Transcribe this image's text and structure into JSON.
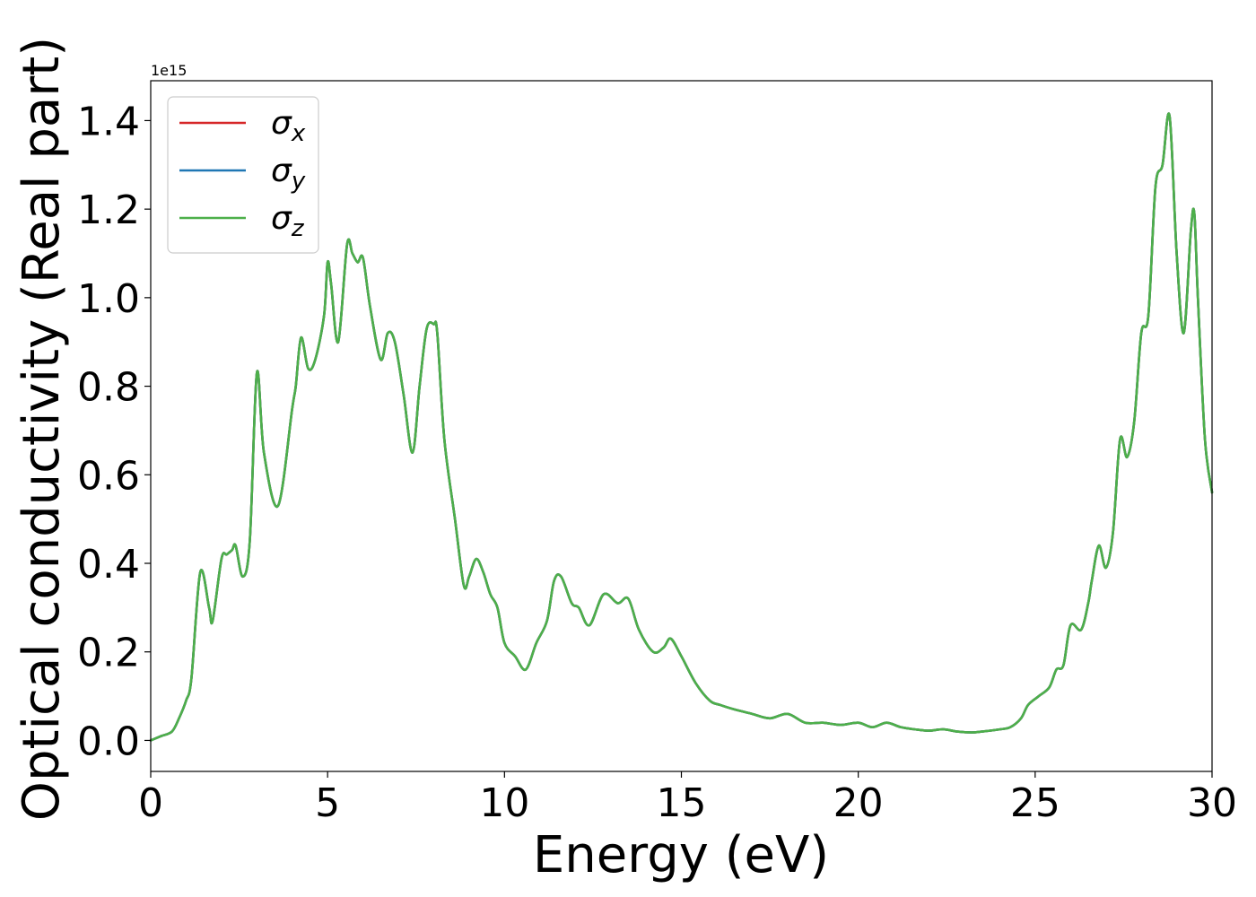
{
  "chart_data": {
    "type": "line",
    "xlabel": "Energy (eV)",
    "ylabel": "Optical conductivity (Real part)",
    "y_offset_label": "1e15",
    "xlim": [
      0,
      30
    ],
    "ylim": [
      -0.07,
      1.49
    ],
    "x_ticks": [
      0,
      5,
      10,
      15,
      20,
      25,
      30
    ],
    "x_tick_labels": [
      "0",
      "5",
      "10",
      "15",
      "20",
      "25",
      "30"
    ],
    "y_ticks": [
      0.0,
      0.2,
      0.4,
      0.6,
      0.8,
      1.0,
      1.2,
      1.4
    ],
    "y_tick_labels": [
      "0.0",
      "0.2",
      "0.4",
      "0.6",
      "0.8",
      "1.0",
      "1.2",
      "1.4"
    ],
    "grid": false,
    "legend_position": "top-left",
    "legend": [
      {
        "symbol": "σ",
        "subscript": "x",
        "color": "#d62728"
      },
      {
        "symbol": "σ",
        "subscript": "y",
        "color": "#1f77b4"
      },
      {
        "symbol": "σ",
        "subscript": "z",
        "color": "#4daf4a"
      }
    ],
    "x": [
      0,
      0.3,
      0.6,
      0.8,
      1.0,
      1.15,
      1.4,
      1.65,
      1.75,
      2.0,
      2.15,
      2.3,
      2.4,
      2.6,
      2.8,
      3.0,
      3.2,
      3.6,
      4.0,
      4.1,
      4.25,
      4.45,
      4.65,
      4.9,
      5.0,
      5.1,
      5.3,
      5.55,
      5.7,
      5.85,
      6.0,
      6.2,
      6.5,
      6.7,
      6.9,
      7.15,
      7.4,
      7.6,
      7.8,
      8.0,
      8.1,
      8.3,
      8.6,
      8.85,
      9.0,
      9.2,
      9.4,
      9.6,
      9.8,
      10.0,
      10.3,
      10.6,
      10.9,
      11.2,
      11.4,
      11.6,
      11.9,
      12.1,
      12.4,
      12.8,
      13.2,
      13.5,
      13.8,
      14.2,
      14.5,
      14.7,
      15.0,
      15.4,
      15.8,
      16.1,
      16.5,
      17.0,
      17.5,
      18.0,
      18.5,
      19.0,
      19.5,
      20.0,
      20.4,
      20.8,
      21.2,
      21.6,
      22.0,
      22.4,
      22.8,
      23.2,
      23.5,
      24.0,
      24.3,
      24.6,
      24.8,
      25.1,
      25.4,
      25.6,
      25.8,
      26.0,
      26.3,
      26.5,
      26.6,
      26.8,
      27.0,
      27.2,
      27.4,
      27.6,
      27.8,
      28.0,
      28.2,
      28.4,
      28.6,
      28.8,
      29.0,
      29.2,
      29.4,
      29.5,
      29.6,
      29.8,
      30.0
    ],
    "series": [
      {
        "name": "σx",
        "color": "#d62728",
        "values": [
          0.0,
          0.01,
          0.02,
          0.05,
          0.09,
          0.14,
          0.38,
          0.3,
          0.27,
          0.41,
          0.42,
          0.43,
          0.44,
          0.37,
          0.45,
          0.83,
          0.65,
          0.53,
          0.75,
          0.8,
          0.91,
          0.84,
          0.86,
          0.96,
          1.08,
          1.03,
          0.9,
          1.12,
          1.1,
          1.08,
          1.09,
          0.98,
          0.86,
          0.92,
          0.9,
          0.78,
          0.65,
          0.8,
          0.93,
          0.94,
          0.92,
          0.68,
          0.5,
          0.35,
          0.37,
          0.41,
          0.38,
          0.33,
          0.3,
          0.22,
          0.19,
          0.16,
          0.22,
          0.27,
          0.36,
          0.37,
          0.31,
          0.3,
          0.26,
          0.33,
          0.31,
          0.32,
          0.25,
          0.2,
          0.21,
          0.23,
          0.19,
          0.13,
          0.09,
          0.08,
          0.07,
          0.06,
          0.05,
          0.06,
          0.04,
          0.04,
          0.035,
          0.04,
          0.03,
          0.04,
          0.03,
          0.025,
          0.022,
          0.025,
          0.02,
          0.018,
          0.02,
          0.025,
          0.03,
          0.05,
          0.08,
          0.1,
          0.12,
          0.16,
          0.17,
          0.26,
          0.25,
          0.31,
          0.36,
          0.44,
          0.39,
          0.47,
          0.68,
          0.64,
          0.72,
          0.92,
          0.96,
          1.25,
          1.3,
          1.41,
          1.1,
          0.92,
          1.15,
          1.19,
          1.0,
          0.68,
          0.56
        ]
      },
      {
        "name": "σy",
        "color": "#1f77b4",
        "values": [
          0.0,
          0.01,
          0.02,
          0.05,
          0.09,
          0.14,
          0.38,
          0.3,
          0.27,
          0.41,
          0.42,
          0.43,
          0.44,
          0.37,
          0.45,
          0.83,
          0.65,
          0.53,
          0.75,
          0.8,
          0.91,
          0.84,
          0.86,
          0.96,
          1.08,
          1.03,
          0.9,
          1.12,
          1.1,
          1.08,
          1.09,
          0.98,
          0.86,
          0.92,
          0.9,
          0.78,
          0.65,
          0.8,
          0.93,
          0.94,
          0.92,
          0.68,
          0.5,
          0.35,
          0.37,
          0.41,
          0.38,
          0.33,
          0.3,
          0.22,
          0.19,
          0.16,
          0.22,
          0.27,
          0.36,
          0.37,
          0.31,
          0.3,
          0.26,
          0.33,
          0.31,
          0.32,
          0.25,
          0.2,
          0.21,
          0.23,
          0.19,
          0.13,
          0.09,
          0.08,
          0.07,
          0.06,
          0.05,
          0.06,
          0.04,
          0.04,
          0.035,
          0.04,
          0.03,
          0.04,
          0.03,
          0.025,
          0.022,
          0.025,
          0.02,
          0.018,
          0.02,
          0.025,
          0.03,
          0.05,
          0.08,
          0.1,
          0.12,
          0.16,
          0.17,
          0.26,
          0.25,
          0.31,
          0.36,
          0.44,
          0.39,
          0.47,
          0.68,
          0.64,
          0.72,
          0.92,
          0.96,
          1.25,
          1.3,
          1.41,
          1.1,
          0.92,
          1.15,
          1.19,
          1.0,
          0.68,
          0.56
        ]
      },
      {
        "name": "σz",
        "color": "#4daf4a",
        "values": [
          0.0,
          0.01,
          0.02,
          0.05,
          0.09,
          0.14,
          0.38,
          0.3,
          0.27,
          0.41,
          0.42,
          0.43,
          0.44,
          0.37,
          0.45,
          0.83,
          0.65,
          0.53,
          0.75,
          0.8,
          0.91,
          0.84,
          0.86,
          0.96,
          1.08,
          1.03,
          0.9,
          1.12,
          1.1,
          1.08,
          1.09,
          0.98,
          0.86,
          0.92,
          0.9,
          0.78,
          0.65,
          0.8,
          0.93,
          0.94,
          0.92,
          0.68,
          0.5,
          0.35,
          0.37,
          0.41,
          0.38,
          0.33,
          0.3,
          0.22,
          0.19,
          0.16,
          0.22,
          0.27,
          0.36,
          0.37,
          0.31,
          0.3,
          0.26,
          0.33,
          0.31,
          0.32,
          0.25,
          0.2,
          0.21,
          0.23,
          0.19,
          0.13,
          0.09,
          0.08,
          0.07,
          0.06,
          0.05,
          0.06,
          0.04,
          0.04,
          0.035,
          0.04,
          0.03,
          0.04,
          0.03,
          0.025,
          0.022,
          0.025,
          0.02,
          0.018,
          0.02,
          0.025,
          0.03,
          0.05,
          0.08,
          0.1,
          0.12,
          0.16,
          0.17,
          0.26,
          0.25,
          0.31,
          0.36,
          0.44,
          0.39,
          0.47,
          0.68,
          0.64,
          0.72,
          0.92,
          0.96,
          1.25,
          1.3,
          1.41,
          1.1,
          0.92,
          1.15,
          1.19,
          1.0,
          0.68,
          0.56
        ]
      }
    ]
  }
}
